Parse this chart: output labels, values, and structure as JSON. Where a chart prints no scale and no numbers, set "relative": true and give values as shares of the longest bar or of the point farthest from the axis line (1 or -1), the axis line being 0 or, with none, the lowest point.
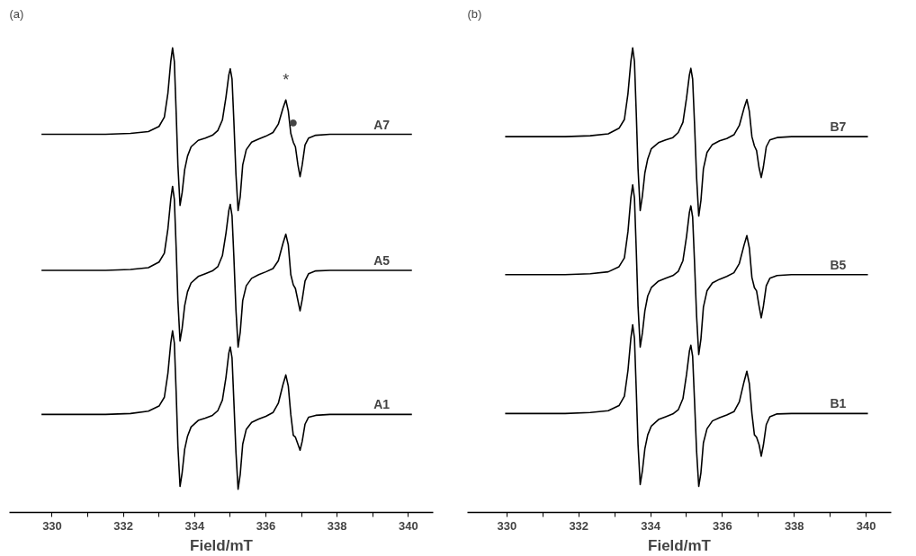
{
  "chart_data": [
    {
      "type": "line",
      "title": "(a)",
      "xlabel": "Field/mT",
      "relative": true,
      "xlim": [
        328.8,
        340.7
      ],
      "xticks": [
        330,
        {
          "value": 331,
          "label": null
        },
        332,
        {
          "value": 333,
          "label": null
        },
        334,
        {
          "value": 335,
          "label": null
        },
        336,
        {
          "value": 337,
          "label": null
        },
        338,
        {
          "value": 339,
          "label": null
        },
        340
      ],
      "x": [
        329.7,
        330.5,
        331.5,
        332.2,
        332.7,
        333.0,
        333.15,
        333.25,
        333.33,
        333.38,
        333.43,
        333.48,
        333.53,
        333.59,
        333.65,
        333.72,
        333.8,
        333.9,
        334.1,
        334.3,
        334.5,
        334.65,
        334.78,
        334.88,
        334.96,
        335.0,
        335.05,
        335.1,
        335.16,
        335.22,
        335.28,
        335.35,
        335.45,
        335.6,
        335.8,
        336.0,
        336.2,
        336.35,
        336.48,
        336.56,
        336.63,
        336.7,
        336.77,
        336.83,
        336.9,
        336.96,
        337.02,
        337.1,
        337.2,
        337.4,
        337.8,
        338.5,
        339.3,
        340.1
      ],
      "series": [
        {
          "name": "A7",
          "color": "#000000",
          "values": [
            0.814,
            0.814,
            0.814,
            0.816,
            0.82,
            0.831,
            0.851,
            0.903,
            0.971,
            1.0,
            0.971,
            0.864,
            0.748,
            0.661,
            0.689,
            0.738,
            0.767,
            0.787,
            0.801,
            0.806,
            0.812,
            0.822,
            0.845,
            0.894,
            0.942,
            0.955,
            0.933,
            0.845,
            0.728,
            0.65,
            0.68,
            0.748,
            0.781,
            0.797,
            0.804,
            0.81,
            0.818,
            0.836,
            0.87,
            0.888,
            0.864,
            0.816,
            0.797,
            0.787,
            0.748,
            0.723,
            0.748,
            0.791,
            0.806,
            0.812,
            0.814,
            0.814,
            0.814,
            0.814
          ]
        },
        {
          "name": "A5",
          "color": "#000000",
          "values": [
            0.521,
            0.521,
            0.521,
            0.523,
            0.527,
            0.539,
            0.558,
            0.611,
            0.674,
            0.702,
            0.674,
            0.572,
            0.456,
            0.369,
            0.397,
            0.445,
            0.475,
            0.494,
            0.508,
            0.514,
            0.52,
            0.529,
            0.553,
            0.601,
            0.65,
            0.663,
            0.639,
            0.553,
            0.436,
            0.356,
            0.388,
            0.456,
            0.488,
            0.504,
            0.512,
            0.518,
            0.525,
            0.542,
            0.579,
            0.599,
            0.576,
            0.512,
            0.49,
            0.482,
            0.456,
            0.434,
            0.458,
            0.498,
            0.514,
            0.52,
            0.521,
            0.521,
            0.521,
            0.521
          ]
        },
        {
          "name": "A1",
          "color": "#000000",
          "values": [
            0.211,
            0.211,
            0.211,
            0.213,
            0.218,
            0.229,
            0.248,
            0.3,
            0.365,
            0.391,
            0.365,
            0.261,
            0.143,
            0.056,
            0.086,
            0.136,
            0.164,
            0.184,
            0.198,
            0.203,
            0.209,
            0.219,
            0.242,
            0.291,
            0.343,
            0.356,
            0.333,
            0.242,
            0.13,
            0.05,
            0.082,
            0.147,
            0.179,
            0.194,
            0.201,
            0.207,
            0.215,
            0.235,
            0.275,
            0.296,
            0.272,
            0.211,
            0.166,
            0.162,
            0.147,
            0.134,
            0.153,
            0.19,
            0.205,
            0.209,
            0.211,
            0.211,
            0.211,
            0.211
          ]
        }
      ],
      "annotations": [
        {
          "text": "*",
          "x": 336.56,
          "y": 0.888
        },
        {
          "text": "●",
          "x": 336.77,
          "y": 0.797
        }
      ]
    },
    {
      "type": "line",
      "title": "(b)",
      "xlabel": "Field/mT",
      "relative": true,
      "xlim": [
        328.9,
        340.7
      ],
      "xticks": [
        330,
        {
          "value": 331,
          "label": null
        },
        332,
        {
          "value": 333,
          "label": null
        },
        334,
        {
          "value": 335,
          "label": null
        },
        336,
        {
          "value": 337,
          "label": null
        },
        338,
        {
          "value": 339,
          "label": null
        },
        340
      ],
      "x": [
        329.95,
        330.62,
        331.62,
        332.32,
        332.82,
        333.12,
        333.27,
        333.37,
        333.45,
        333.5,
        333.55,
        333.6,
        333.65,
        333.71,
        333.77,
        333.84,
        333.92,
        334.02,
        334.22,
        334.42,
        334.62,
        334.77,
        334.9,
        335.0,
        335.08,
        335.12,
        335.17,
        335.22,
        335.28,
        335.34,
        335.4,
        335.47,
        335.57,
        335.72,
        335.92,
        336.12,
        336.32,
        336.47,
        336.6,
        336.68,
        336.75,
        336.82,
        336.89,
        336.95,
        337.02,
        337.08,
        337.14,
        337.22,
        337.32,
        337.52,
        337.92,
        338.62,
        339.42,
        340.05
      ],
      "series": [
        {
          "name": "B7",
          "color": "#000000",
          "values": [
            0.809,
            0.809,
            0.809,
            0.811,
            0.815,
            0.827,
            0.846,
            0.902,
            0.971,
            1.0,
            0.971,
            0.861,
            0.74,
            0.65,
            0.681,
            0.731,
            0.761,
            0.783,
            0.796,
            0.802,
            0.807,
            0.818,
            0.84,
            0.892,
            0.942,
            0.956,
            0.933,
            0.842,
            0.721,
            0.638,
            0.671,
            0.74,
            0.775,
            0.792,
            0.8,
            0.805,
            0.813,
            0.833,
            0.87,
            0.889,
            0.863,
            0.809,
            0.789,
            0.779,
            0.742,
            0.721,
            0.744,
            0.787,
            0.802,
            0.807,
            0.809,
            0.809,
            0.809,
            0.809
          ]
        },
        {
          "name": "B5",
          "color": "#000000",
          "values": [
            0.512,
            0.512,
            0.512,
            0.514,
            0.518,
            0.529,
            0.548,
            0.605,
            0.677,
            0.705,
            0.677,
            0.566,
            0.444,
            0.356,
            0.386,
            0.434,
            0.466,
            0.484,
            0.498,
            0.504,
            0.51,
            0.519,
            0.542,
            0.594,
            0.646,
            0.66,
            0.636,
            0.544,
            0.423,
            0.34,
            0.373,
            0.442,
            0.477,
            0.494,
            0.502,
            0.508,
            0.516,
            0.536,
            0.575,
            0.596,
            0.569,
            0.506,
            0.484,
            0.477,
            0.444,
            0.419,
            0.444,
            0.488,
            0.504,
            0.51,
            0.512,
            0.512,
            0.512,
            0.512
          ]
        },
        {
          "name": "B1",
          "color": "#000000",
          "values": [
            0.213,
            0.213,
            0.213,
            0.215,
            0.219,
            0.23,
            0.25,
            0.306,
            0.375,
            0.404,
            0.375,
            0.265,
            0.146,
            0.06,
            0.089,
            0.137,
            0.167,
            0.186,
            0.2,
            0.206,
            0.212,
            0.221,
            0.245,
            0.297,
            0.347,
            0.36,
            0.336,
            0.245,
            0.132,
            0.056,
            0.085,
            0.15,
            0.18,
            0.197,
            0.204,
            0.21,
            0.217,
            0.238,
            0.281,
            0.304,
            0.277,
            0.213,
            0.167,
            0.162,
            0.146,
            0.121,
            0.145,
            0.189,
            0.206,
            0.212,
            0.213,
            0.213,
            0.213,
            0.213
          ]
        }
      ]
    }
  ]
}
